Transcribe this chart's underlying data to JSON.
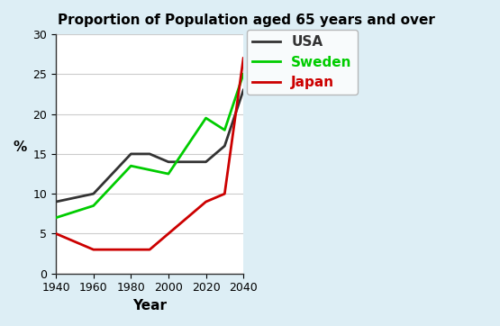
{
  "title": "Proportion of Population aged 65 years and over",
  "xlabel": "Year",
  "ylabel": "%",
  "years": [
    1940,
    1960,
    1980,
    1990,
    2000,
    2020,
    2030,
    2040
  ],
  "usa": [
    9,
    10,
    15,
    15,
    14,
    14,
    16,
    23
  ],
  "sweden": [
    7,
    8.5,
    13.5,
    13,
    12.5,
    19.5,
    18,
    25
  ],
  "japan": [
    5,
    3,
    3,
    3,
    5,
    9,
    10,
    27
  ],
  "usa_color": "#333333",
  "sweden_color": "#00cc00",
  "japan_color": "#cc0000",
  "ylim": [
    0,
    30
  ],
  "xlim": [
    1940,
    2040
  ],
  "xticks": [
    1940,
    1960,
    1980,
    2000,
    2020,
    2040
  ],
  "yticks": [
    0,
    5,
    10,
    15,
    20,
    25,
    30
  ],
  "bg_outer": "#ddeef5",
  "bg_inner": "#ffffff",
  "linewidth": 2.0,
  "legend_labels": [
    "USA",
    "Sweden",
    "Japan"
  ]
}
